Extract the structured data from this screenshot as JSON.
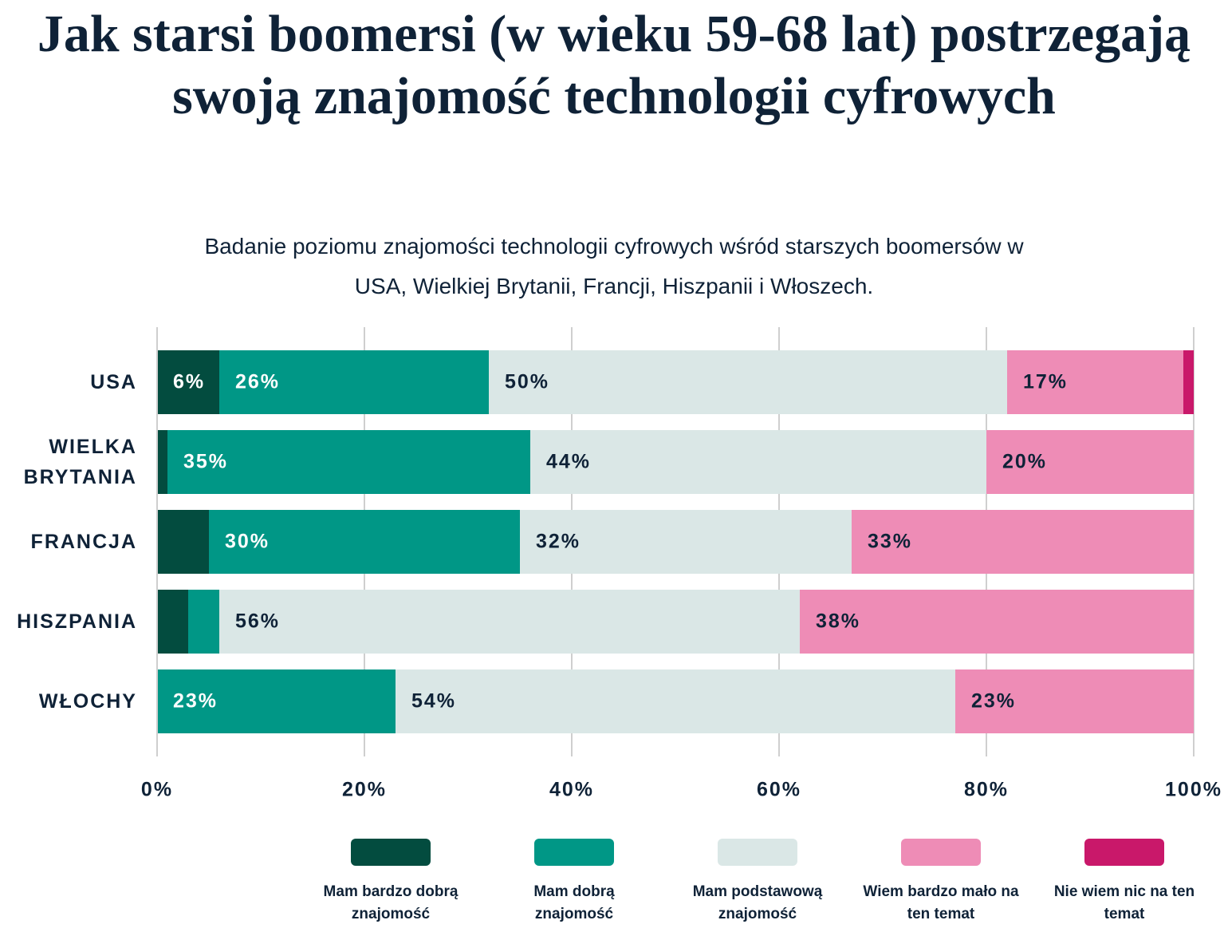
{
  "chart_data": {
    "type": "bar",
    "orientation": "horizontal",
    "stacked": true,
    "title": "Jak starsi boomersi (w wieku 59-68 lat) postrzegają swoją znajomość technologii cyfrowych",
    "subtitle": "Badanie poziomu znajomości technologii cyfrowych wśród starszych boomersów w USA, Wielkiej Brytanii, Francji, Hiszpanii i Włoszech.",
    "categories": [
      "USA",
      "WIELKA BRYTANIA",
      "FRANCJA",
      "HISZPANIA",
      "WŁOCHY"
    ],
    "series": [
      {
        "name": "Mam bardzo dobrą znajomość",
        "color": "#034c3f",
        "values": [
          6,
          1,
          5,
          3,
          0
        ],
        "value_labels": [
          "6%",
          null,
          null,
          null,
          null
        ]
      },
      {
        "name": "Mam dobrą znajomość",
        "color": "#009786",
        "values": [
          26,
          35,
          30,
          3,
          23
        ],
        "value_labels": [
          "26%",
          "35%",
          "30%",
          null,
          "23%"
        ]
      },
      {
        "name": "Mam podstawową znajomość",
        "color": "#dae7e6",
        "values": [
          50,
          44,
          32,
          56,
          54
        ],
        "value_labels": [
          "50%",
          "44%",
          "32%",
          "56%",
          "54%"
        ]
      },
      {
        "name": "Wiem bardzo mało na ten temat",
        "color": "#ee8cb6",
        "values": [
          17,
          20,
          33,
          38,
          23
        ],
        "value_labels": [
          "17%",
          "20%",
          "33%",
          "38%",
          "23%"
        ]
      },
      {
        "name": "Nie wiem nic na ten temat",
        "color": "#c9186a",
        "values": [
          1,
          0,
          0,
          0,
          0
        ],
        "value_labels": [
          null,
          null,
          null,
          null,
          null
        ]
      }
    ],
    "xlim": [
      0,
      100
    ],
    "xticks": [
      {
        "value": 0,
        "label": "0%"
      },
      {
        "value": 20,
        "label": "20%"
      },
      {
        "value": 40,
        "label": "40%"
      },
      {
        "value": 60,
        "label": "60%"
      },
      {
        "value": 80,
        "label": "80%"
      },
      {
        "value": 100,
        "label": "100%"
      }
    ],
    "grid": true
  }
}
